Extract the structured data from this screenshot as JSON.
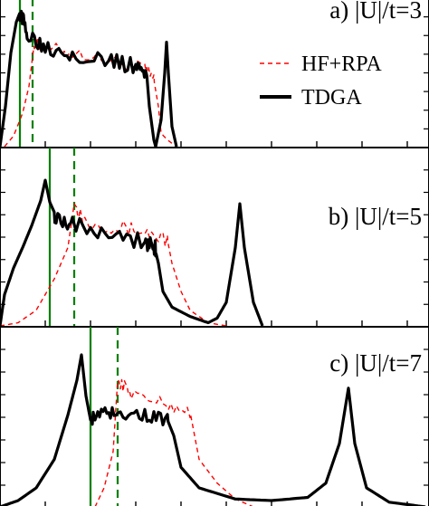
{
  "chart_data": [
    {
      "type": "line",
      "panel_label": "a) |U|/t=3",
      "legend": {
        "placement": "top-right",
        "entries": [
          {
            "name": "HF+RPA",
            "style": "dashed",
            "color": "#ff0000"
          },
          {
            "name": "TDGA",
            "style": "solid",
            "color": "#000000"
          }
        ]
      },
      "vertical_markers": [
        {
          "style": "solid",
          "color": "#008000",
          "x": 0.22
        },
        {
          "style": "dashed",
          "color": "#008000",
          "x": 0.36
        }
      ],
      "xlim": [
        0,
        4.7
      ],
      "ylim": [
        0,
        1
      ],
      "series": [
        {
          "name": "HF+RPA",
          "color": "#ff0000",
          "dash": true,
          "points": [
            [
              0.05,
              0.0
            ],
            [
              0.15,
              0.08
            ],
            [
              0.25,
              0.25
            ],
            [
              0.32,
              0.45
            ],
            [
              0.38,
              0.78
            ],
            [
              0.5,
              0.74
            ],
            [
              0.8,
              0.7
            ],
            [
              1.2,
              0.65
            ],
            [
              1.6,
              0.58
            ],
            [
              1.7,
              0.5
            ],
            [
              1.75,
              0.3
            ],
            [
              1.78,
              0.1
            ],
            [
              1.85,
              0.05
            ],
            [
              1.95,
              0.0
            ]
          ],
          "noise": [
            0.38,
            1.7,
            0.05
          ]
        },
        {
          "name": "TDGA",
          "color": "#000000",
          "dash": false,
          "points": [
            [
              0.0,
              0.0
            ],
            [
              0.06,
              0.3
            ],
            [
              0.12,
              0.7
            ],
            [
              0.18,
              0.93
            ],
            [
              0.22,
              1.0
            ],
            [
              0.3,
              0.85
            ],
            [
              0.5,
              0.75
            ],
            [
              0.8,
              0.7
            ],
            [
              1.2,
              0.64
            ],
            [
              1.5,
              0.6
            ],
            [
              1.62,
              0.55
            ],
            [
              1.65,
              0.3
            ],
            [
              1.7,
              0.05
            ],
            [
              1.72,
              0.0
            ],
            [
              1.78,
              0.2
            ],
            [
              1.82,
              0.55
            ],
            [
              1.84,
              0.78
            ],
            [
              1.86,
              0.55
            ],
            [
              1.9,
              0.15
            ],
            [
              1.95,
              0.0
            ]
          ],
          "noise": [
            0.22,
            1.62,
            0.06
          ]
        }
      ]
    },
    {
      "type": "line",
      "panel_label": "b) |U|/t=5",
      "vertical_markers": [
        {
          "style": "solid",
          "color": "#008000",
          "x": 0.55
        },
        {
          "style": "dashed",
          "color": "#008000",
          "x": 0.82
        }
      ],
      "xlim": [
        0,
        4.7
      ],
      "ylim": [
        0,
        1
      ],
      "series": [
        {
          "name": "HF+RPA",
          "color": "#ff0000",
          "dash": true,
          "points": [
            [
              0.0,
              0.0
            ],
            [
              0.2,
              0.02
            ],
            [
              0.4,
              0.1
            ],
            [
              0.6,
              0.3
            ],
            [
              0.75,
              0.5
            ],
            [
              0.82,
              0.78
            ],
            [
              0.95,
              0.67
            ],
            [
              1.3,
              0.63
            ],
            [
              1.6,
              0.6
            ],
            [
              1.85,
              0.55
            ],
            [
              1.9,
              0.4
            ],
            [
              2.0,
              0.22
            ],
            [
              2.1,
              0.1
            ],
            [
              2.3,
              0.02
            ],
            [
              2.5,
              0.0
            ]
          ],
          "noise": [
            0.85,
            1.85,
            0.05
          ]
        },
        {
          "name": "TDGA",
          "color": "#000000",
          "dash": false,
          "points": [
            [
              0.0,
              0.0
            ],
            [
              0.05,
              0.2
            ],
            [
              0.15,
              0.37
            ],
            [
              0.25,
              0.5
            ],
            [
              0.35,
              0.64
            ],
            [
              0.45,
              0.8
            ],
            [
              0.5,
              0.93
            ],
            [
              0.55,
              0.79
            ],
            [
              0.62,
              0.7
            ],
            [
              0.8,
              0.66
            ],
            [
              1.2,
              0.6
            ],
            [
              1.6,
              0.54
            ],
            [
              1.7,
              0.52
            ],
            [
              1.75,
              0.4
            ],
            [
              1.8,
              0.22
            ],
            [
              1.9,
              0.12
            ],
            [
              2.1,
              0.06
            ],
            [
              2.3,
              0.02
            ],
            [
              2.4,
              0.05
            ],
            [
              2.5,
              0.15
            ],
            [
              2.6,
              0.5
            ],
            [
              2.65,
              0.78
            ],
            [
              2.7,
              0.5
            ],
            [
              2.8,
              0.15
            ],
            [
              2.9,
              0.0
            ]
          ],
          "noise": [
            0.6,
            1.72,
            0.06
          ]
        }
      ]
    },
    {
      "type": "line",
      "panel_label": "c) |U|/t=7",
      "vertical_markers": [
        {
          "style": "solid",
          "color": "#008000",
          "x": 1.0
        },
        {
          "style": "dashed",
          "color": "#008000",
          "x": 1.3
        }
      ],
      "xlim": [
        0,
        4.7
      ],
      "ylim": [
        0,
        1
      ],
      "series": [
        {
          "name": "HF+RPA",
          "color": "#ff0000",
          "dash": true,
          "points": [
            [
              1.05,
              0.0
            ],
            [
              1.15,
              0.12
            ],
            [
              1.25,
              0.35
            ],
            [
              1.3,
              0.8
            ],
            [
              1.45,
              0.72
            ],
            [
              1.8,
              0.65
            ],
            [
              2.1,
              0.6
            ],
            [
              2.15,
              0.45
            ],
            [
              2.2,
              0.3
            ],
            [
              2.4,
              0.15
            ],
            [
              2.6,
              0.05
            ],
            [
              2.8,
              0.0
            ]
          ],
          "noise": [
            1.32,
            2.1,
            0.04
          ]
        },
        {
          "name": "TDGA",
          "color": "#000000",
          "dash": false,
          "points": [
            [
              0.0,
              0.0
            ],
            [
              0.2,
              0.04
            ],
            [
              0.4,
              0.12
            ],
            [
              0.6,
              0.3
            ],
            [
              0.75,
              0.58
            ],
            [
              0.85,
              0.8
            ],
            [
              0.9,
              0.96
            ],
            [
              0.95,
              0.7
            ],
            [
              1.0,
              0.55
            ],
            [
              1.1,
              0.6
            ],
            [
              1.3,
              0.6
            ],
            [
              1.6,
              0.58
            ],
            [
              1.85,
              0.55
            ],
            [
              1.92,
              0.45
            ],
            [
              2.0,
              0.25
            ],
            [
              2.2,
              0.12
            ],
            [
              2.6,
              0.05
            ],
            [
              3.0,
              0.04
            ],
            [
              3.4,
              0.06
            ],
            [
              3.6,
              0.15
            ],
            [
              3.75,
              0.4
            ],
            [
              3.85,
              0.75
            ],
            [
              3.92,
              0.4
            ],
            [
              4.05,
              0.12
            ],
            [
              4.3,
              0.03
            ],
            [
              4.7,
              0.0
            ]
          ],
          "noise": [
            1.02,
            1.85,
            0.04
          ]
        }
      ]
    }
  ],
  "colors": {
    "dft_line": "#000000",
    "rpa_line": "#ff0000",
    "markers": "#008000",
    "frame": "#000000"
  }
}
